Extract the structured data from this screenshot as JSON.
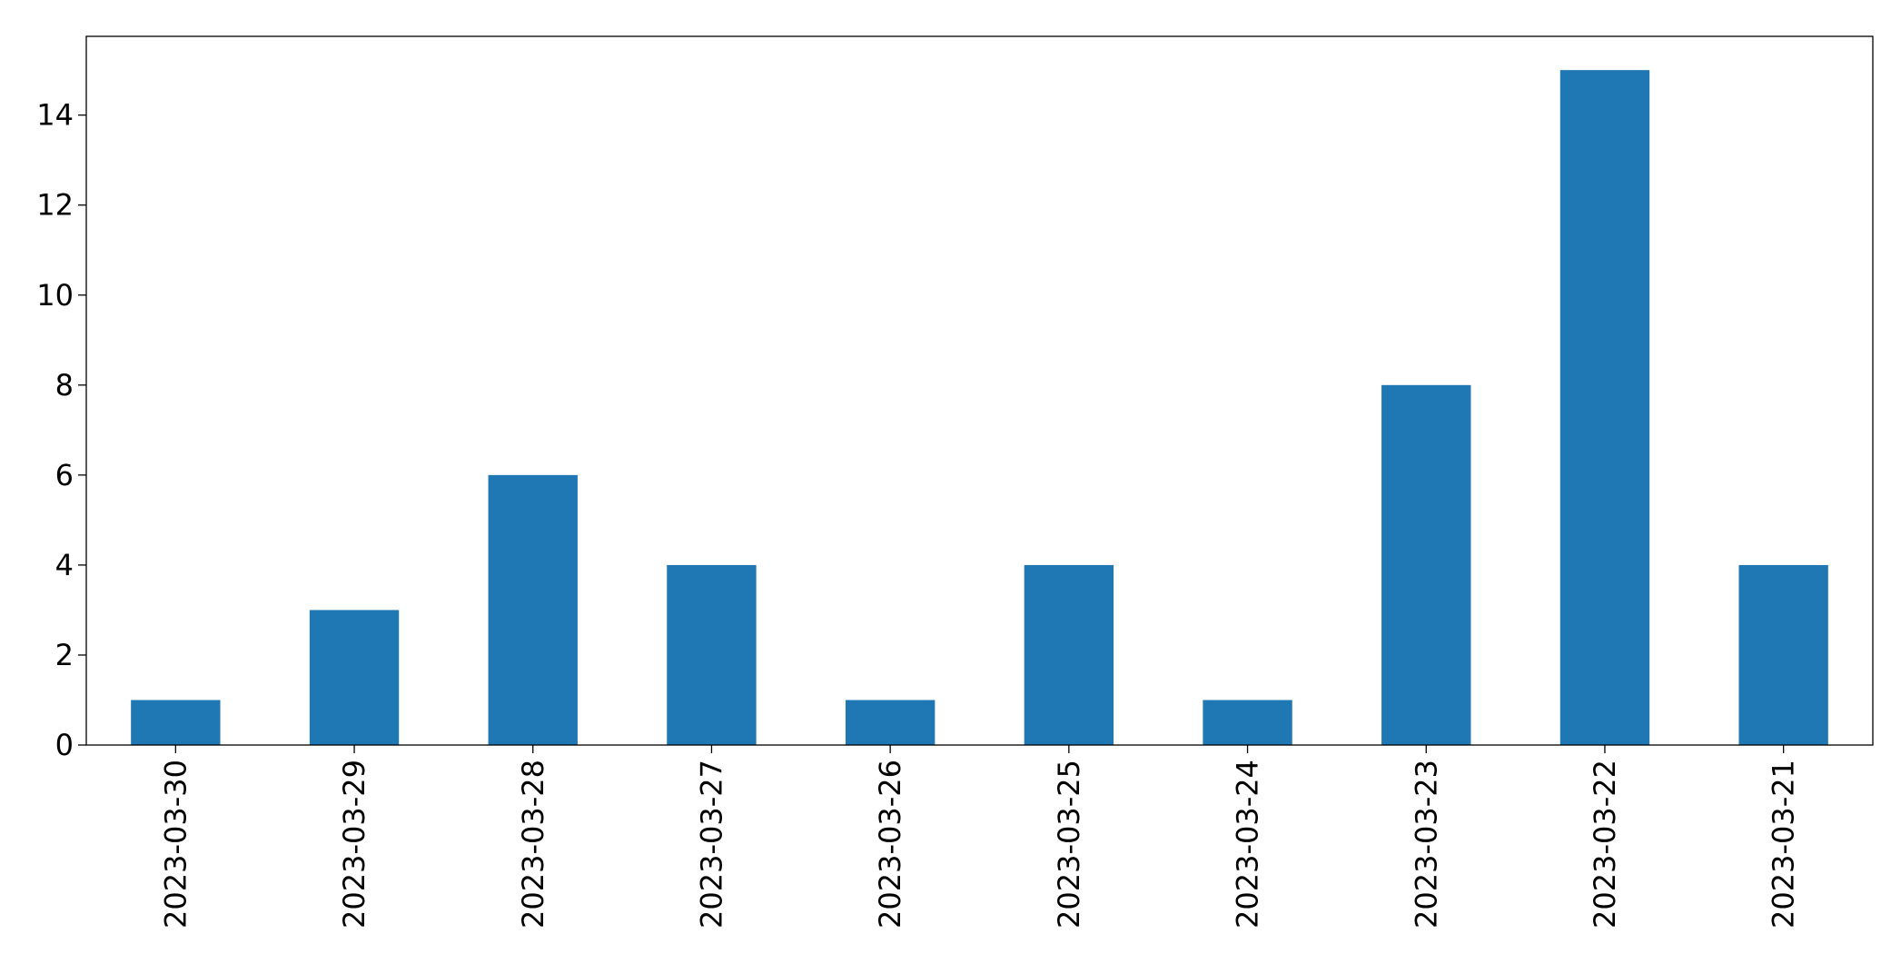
{
  "chart_data": {
    "type": "bar",
    "categories": [
      "2023-03-30",
      "2023-03-29",
      "2023-03-28",
      "2023-03-27",
      "2023-03-26",
      "2023-03-25",
      "2023-03-24",
      "2023-03-23",
      "2023-03-22",
      "2023-03-21"
    ],
    "values": [
      1,
      3,
      6,
      4,
      1,
      4,
      1,
      8,
      15,
      4
    ],
    "color": "#1f77b4",
    "ylim": [
      0,
      15.75
    ],
    "yticks": [
      0,
      2,
      4,
      6,
      8,
      10,
      12,
      14
    ],
    "grid": false
  }
}
